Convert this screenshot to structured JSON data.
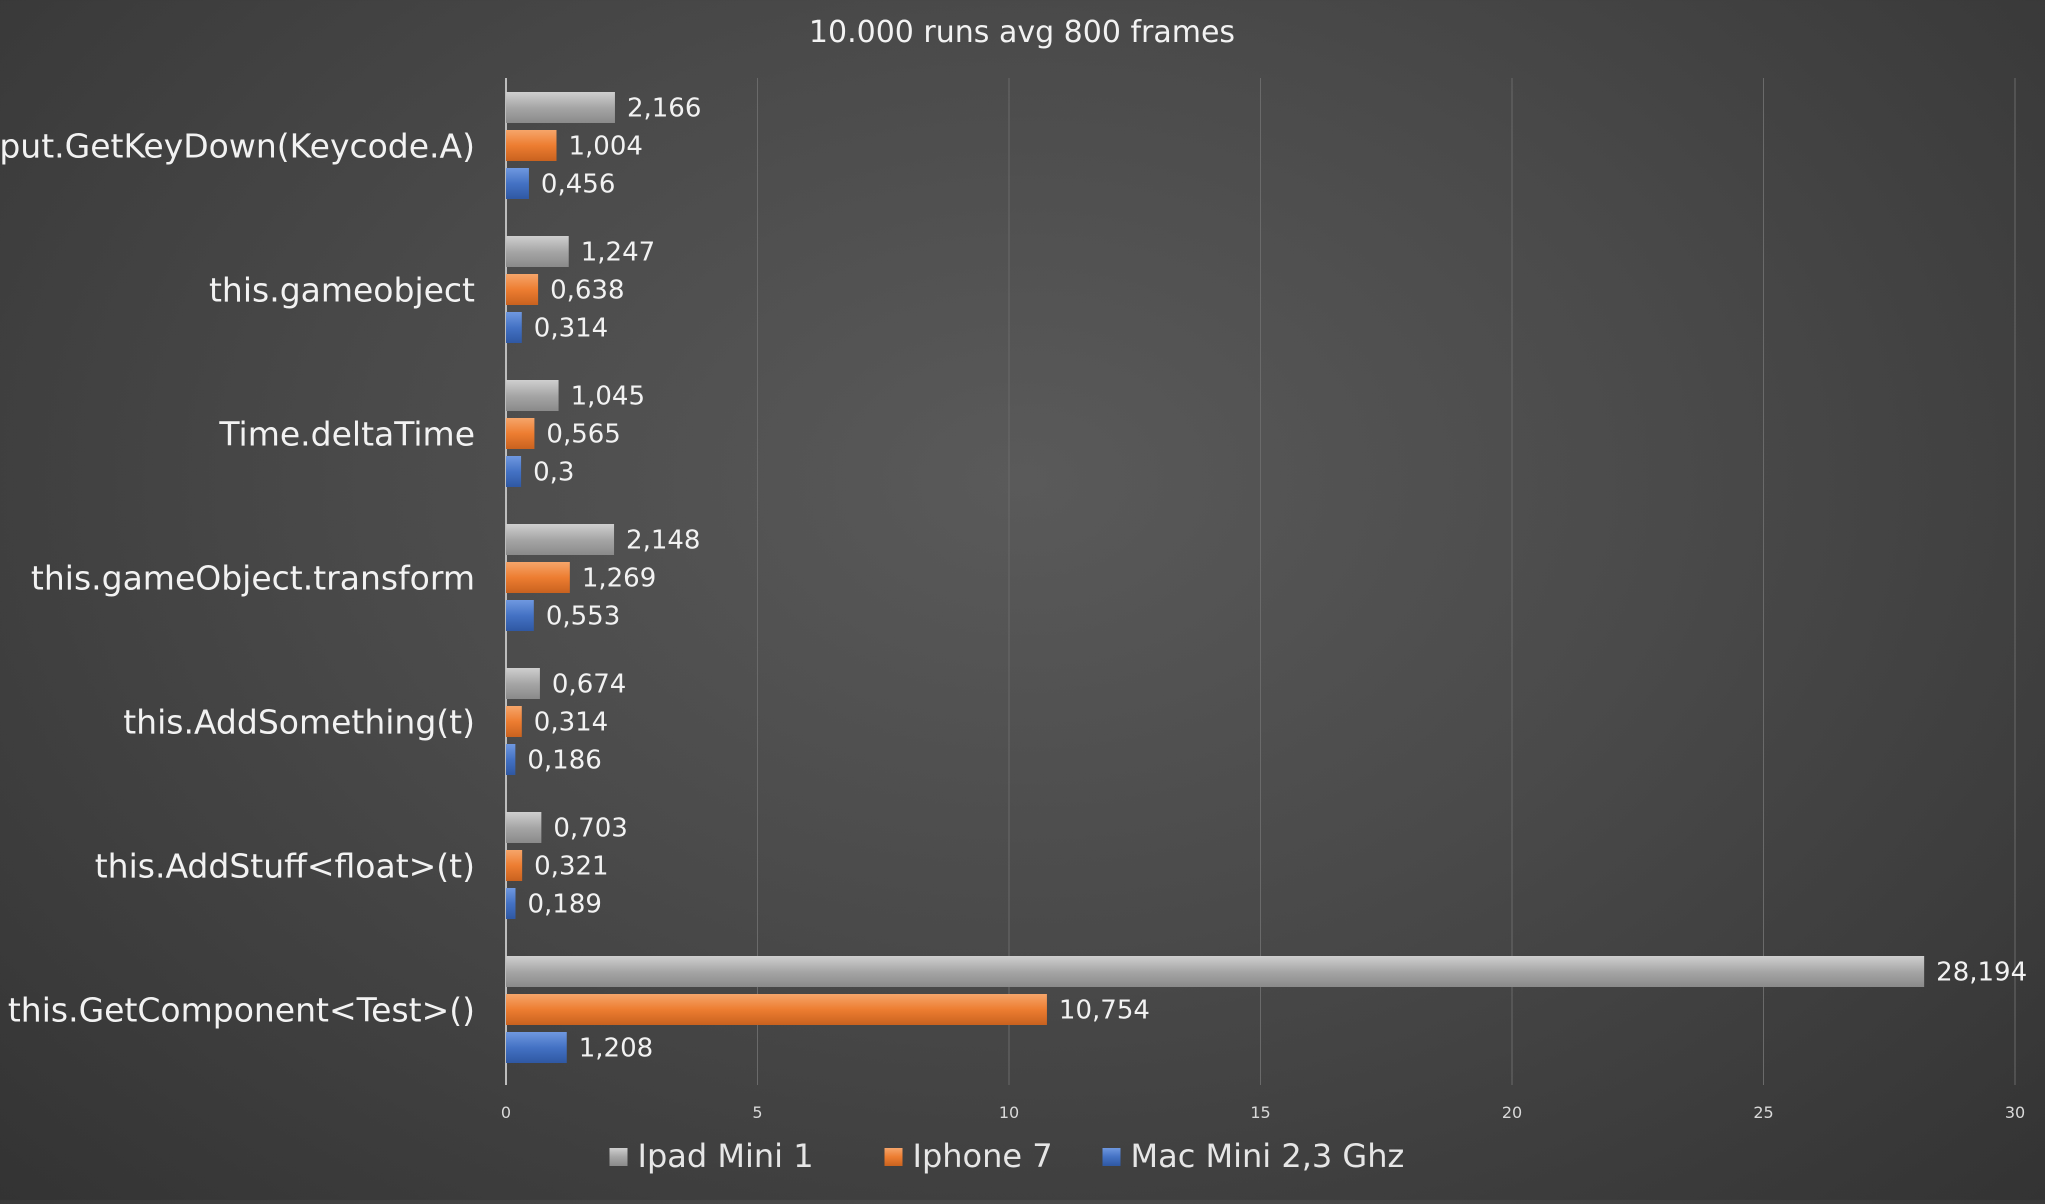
{
  "chart_data": {
    "type": "bar",
    "orientation": "horizontal",
    "title": "10.000 runs avg 800 frames",
    "categories": [
      "Input.GetKeyDown(Keycode.A)",
      "this.gameobject",
      "Time.deltaTime",
      "this.gameObject.transform",
      "this.AddSomething(t)",
      "this.AddStuff<float>(t)",
      "this.GetComponent<Test>()"
    ],
    "series": [
      {
        "name": "Ipad Mini 1",
        "color": "#a6a6a6",
        "values": [
          2.166,
          1.247,
          1.045,
          2.148,
          0.674,
          0.703,
          28.194
        ],
        "labels": [
          "2,166",
          "1,247",
          "1,045",
          "2,148",
          "0,674",
          "0,703",
          "28,194"
        ]
      },
      {
        "name": "Iphone 7",
        "color": "#ed7d31",
        "values": [
          1.004,
          0.638,
          0.565,
          1.269,
          0.314,
          0.321,
          10.754
        ],
        "labels": [
          "1,004",
          "0,638",
          "0,565",
          "1,269",
          "0,314",
          "0,321",
          "10,754"
        ]
      },
      {
        "name": "Mac Mini 2,3 Ghz",
        "color": "#4472c4",
        "values": [
          0.456,
          0.314,
          0.3,
          0.553,
          0.186,
          0.189,
          1.208
        ],
        "labels": [
          "0,456",
          "0,314",
          "0,3",
          "0,553",
          "0,186",
          "0,189",
          "1,208"
        ]
      }
    ],
    "xlim": [
      0,
      30
    ],
    "xticks": [
      0,
      5,
      10,
      15,
      20,
      25,
      30
    ],
    "xtick_labels": [
      "0",
      "5",
      "10",
      "15",
      "20",
      "25",
      "30"
    ],
    "grid": true,
    "legend_position": "bottom",
    "xlabel": "",
    "ylabel": ""
  }
}
